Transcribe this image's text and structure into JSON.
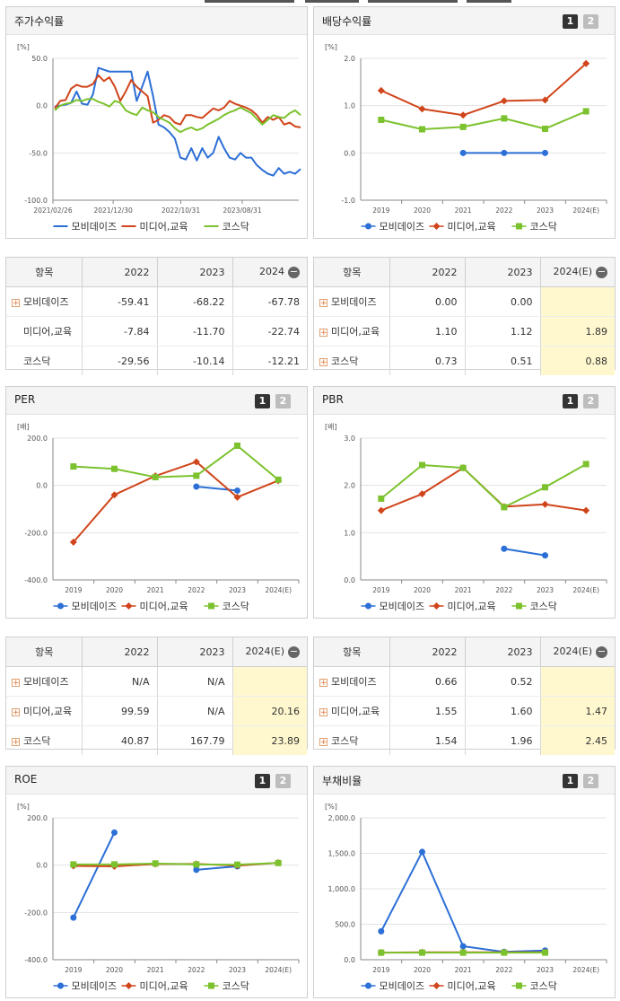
{
  "colors": {
    "mobi": "#2c6fd6",
    "media": "#d0451b",
    "kosdaq": "#7cc22e",
    "grid": "#e3e3e3",
    "axis": "#444",
    "header_bg": "#f4f4f4",
    "highlight": "#fff8cf"
  },
  "legend": {
    "mobi": "모비데이즈",
    "media": "미디어,교육",
    "kosdaq": "코스닥"
  },
  "panels": {
    "stock": {
      "title": "주가수익률"
    },
    "dividend": {
      "title": "배당수익률",
      "btn1": "1",
      "btn2": "2"
    },
    "per": {
      "title": "PER",
      "btn1": "1",
      "btn2": "2"
    },
    "pbr": {
      "title": "PBR",
      "btn1": "1",
      "btn2": "2"
    },
    "roe": {
      "title": "ROE",
      "btn1": "1",
      "btn2": "2"
    },
    "debt": {
      "title": "부채비율",
      "btn1": "1",
      "btn2": "2"
    }
  },
  "tables": {
    "stock": {
      "head": [
        "항목",
        "2022",
        "2023",
        "2024"
      ],
      "rows": [
        {
          "name": "모비데이즈",
          "plus": true,
          "v": [
            "-59.41",
            "-68.22",
            "-67.78"
          ]
        },
        {
          "name": "미디어,교육",
          "plus": false,
          "v": [
            "-7.84",
            "-11.70",
            "-22.74"
          ]
        },
        {
          "name": "코스닥",
          "plus": false,
          "v": [
            "-29.56",
            "-10.14",
            "-12.21"
          ]
        }
      ]
    },
    "dividend": {
      "head": [
        "항목",
        "2022",
        "2023",
        "2024(E)"
      ],
      "rows": [
        {
          "name": "모비데이즈",
          "plus": true,
          "v": [
            "0.00",
            "0.00",
            ""
          ]
        },
        {
          "name": "미디어,교육",
          "plus": true,
          "v": [
            "1.10",
            "1.12",
            "1.89"
          ]
        },
        {
          "name": "코스닥",
          "plus": true,
          "v": [
            "0.73",
            "0.51",
            "0.88"
          ]
        }
      ]
    },
    "per": {
      "head": [
        "항목",
        "2022",
        "2023",
        "2024(E)"
      ],
      "rows": [
        {
          "name": "모비데이즈",
          "plus": true,
          "v": [
            "N/A",
            "N/A",
            ""
          ]
        },
        {
          "name": "미디어,교육",
          "plus": true,
          "v": [
            "99.59",
            "N/A",
            "20.16"
          ]
        },
        {
          "name": "코스닥",
          "plus": true,
          "v": [
            "40.87",
            "167.79",
            "23.89"
          ]
        }
      ]
    },
    "pbr": {
      "head": [
        "항목",
        "2022",
        "2023",
        "2024(E)"
      ],
      "rows": [
        {
          "name": "모비데이즈",
          "plus": true,
          "v": [
            "0.66",
            "0.52",
            ""
          ]
        },
        {
          "name": "미디어,교육",
          "plus": true,
          "v": [
            "1.55",
            "1.60",
            "1.47"
          ]
        },
        {
          "name": "코스닥",
          "plus": true,
          "v": [
            "1.54",
            "1.96",
            "2.45"
          ]
        }
      ]
    }
  },
  "chart_data": [
    {
      "id": "stock",
      "type": "line",
      "title": "주가수익률",
      "unit": "[%]",
      "ylim": [
        -100,
        50
      ],
      "yticks": [
        "50.0",
        "0.0",
        "-50.0",
        "-100.0"
      ],
      "x_ticks": [
        "2021/02/26",
        "2021/12/30",
        "2022/10/31",
        "2023/08/31"
      ],
      "series": [
        {
          "name": "모비데이즈",
          "values": [
            -1,
            0,
            1,
            3,
            15,
            2,
            1,
            12,
            40,
            38,
            36,
            36,
            36,
            36,
            36,
            5,
            20,
            36,
            10,
            -20,
            -23,
            -28,
            -35,
            -55,
            -57,
            -45,
            -58,
            -45,
            -55,
            -50,
            -33,
            -45,
            -55,
            -57,
            -50,
            -55,
            -55,
            -63,
            -68,
            -72,
            -74,
            -66,
            -72,
            -70,
            -72,
            -67
          ]
        },
        {
          "name": "미디어,교육",
          "values": [
            -3,
            5,
            6,
            18,
            22,
            20,
            20,
            23,
            32,
            26,
            30,
            20,
            5,
            15,
            27,
            20,
            15,
            10,
            -18,
            -15,
            -10,
            -12,
            -18,
            -20,
            -10,
            -10,
            -12,
            -13,
            -8,
            -3,
            -5,
            -2,
            5,
            2,
            0,
            -2,
            -5,
            -10,
            -18,
            -12,
            -15,
            -12,
            -20,
            -18,
            -22,
            -23
          ]
        },
        {
          "name": "코스닥",
          "values": [
            -5,
            0,
            2,
            3,
            6,
            5,
            7,
            7,
            4,
            2,
            -1,
            5,
            3,
            -5,
            -8,
            -10,
            -2,
            -5,
            -7,
            -12,
            -15,
            -18,
            -24,
            -28,
            -25,
            -23,
            -26,
            -24,
            -20,
            -17,
            -14,
            -10,
            -7,
            -5,
            -2,
            -5,
            -8,
            -14,
            -20,
            -15,
            -10,
            -12,
            -13,
            -8,
            -5,
            -10
          ]
        }
      ]
    },
    {
      "id": "dividend",
      "type": "line",
      "title": "배당수익률",
      "unit": "[%]",
      "ylim": [
        -1,
        2
      ],
      "yticks": [
        "2.0",
        "1.0",
        "0.0",
        "-1.0"
      ],
      "categories": [
        "2019",
        "2020",
        "2021",
        "2022",
        "2023",
        "2024(E)"
      ],
      "series": [
        {
          "name": "모비데이즈",
          "values": [
            null,
            null,
            0.0,
            0.0,
            0.0,
            null
          ]
        },
        {
          "name": "미디어,교육",
          "values": [
            1.32,
            0.93,
            0.8,
            1.1,
            1.12,
            1.89
          ]
        },
        {
          "name": "코스닥",
          "values": [
            0.7,
            0.5,
            0.55,
            0.73,
            0.51,
            0.88
          ]
        }
      ]
    },
    {
      "id": "per",
      "type": "line",
      "title": "PER",
      "unit": "[배]",
      "ylim": [
        -400,
        200
      ],
      "yticks": [
        "200.0",
        "0.0",
        "-200.0",
        "-400.0"
      ],
      "categories": [
        "2019",
        "2020",
        "2021",
        "2022",
        "2023",
        "2024(E)"
      ],
      "series": [
        {
          "name": "모비데이즈",
          "values": [
            null,
            null,
            null,
            -5,
            -22,
            null
          ]
        },
        {
          "name": "미디어,교육",
          "values": [
            -240,
            -40,
            40,
            99.59,
            -50,
            20.16
          ]
        },
        {
          "name": "코스닥",
          "values": [
            80,
            70,
            35,
            40.87,
            167.79,
            23.89
          ]
        }
      ]
    },
    {
      "id": "pbr",
      "type": "line",
      "title": "PBR",
      "unit": "[배]",
      "ylim": [
        0,
        3
      ],
      "yticks": [
        "3.0",
        "2.0",
        "1.0",
        "0.0"
      ],
      "categories": [
        "2019",
        "2020",
        "2021",
        "2022",
        "2023",
        "2024(E)"
      ],
      "series": [
        {
          "name": "모비데이즈",
          "values": [
            null,
            null,
            null,
            0.66,
            0.52,
            null
          ]
        },
        {
          "name": "미디어,교육",
          "values": [
            1.47,
            1.82,
            2.37,
            1.55,
            1.6,
            1.47
          ]
        },
        {
          "name": "코스닥",
          "values": [
            1.72,
            2.43,
            2.37,
            1.54,
            1.96,
            2.45
          ]
        }
      ]
    },
    {
      "id": "roe",
      "type": "line",
      "title": "ROE",
      "unit": "[%]",
      "ylim": [
        -400,
        200
      ],
      "yticks": [
        "200.0",
        "0.0",
        "-200.0",
        "-400.0"
      ],
      "categories": [
        "2019",
        "2020",
        "2021",
        "2022",
        "2023",
        "2024(E)"
      ],
      "series": [
        {
          "name": "모비데이즈",
          "values": [
            -222,
            138,
            null,
            -20,
            -5,
            null
          ]
        },
        {
          "name": "미디어,교육",
          "values": [
            -3,
            -5,
            5,
            5,
            -2,
            10
          ]
        },
        {
          "name": "코스닥",
          "values": [
            3,
            3,
            7,
            3,
            2,
            9
          ]
        }
      ]
    },
    {
      "id": "debt",
      "type": "line",
      "title": "부채비율",
      "unit": "[%]",
      "ylim": [
        0,
        2000
      ],
      "yticks": [
        "2,000.0",
        "1,500.0",
        "1,000.0",
        "500.0",
        "0.0"
      ],
      "categories": [
        "2019",
        "2020",
        "2021",
        "2022",
        "2023",
        "2024(E)"
      ],
      "series": [
        {
          "name": "모비데이즈",
          "values": [
            400,
            1520,
            190,
            110,
            130,
            null
          ]
        },
        {
          "name": "미디어,교육",
          "values": [
            100,
            105,
            105,
            105,
            105,
            null
          ]
        },
        {
          "name": "코스닥",
          "values": [
            100,
            100,
            100,
            100,
            100,
            null
          ]
        }
      ]
    }
  ]
}
